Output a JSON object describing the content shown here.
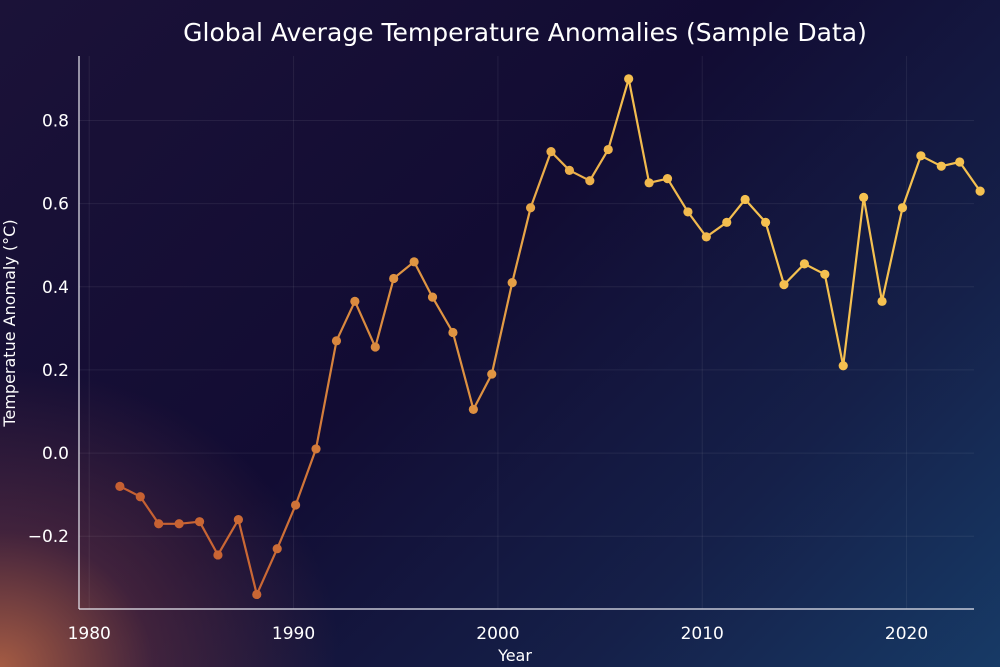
{
  "chart_data": {
    "type": "line",
    "title": "Global Average Temperature Anomalies (Sample Data)",
    "xlabel": "Year",
    "ylabel": "Temperatue Anomaly (°C)",
    "xlim": [
      1979.5,
      2023.3
    ],
    "ylim": [
      -0.375,
      0.955
    ],
    "xticks": [
      1980,
      1990,
      2000,
      2010,
      2020
    ],
    "yticks": [
      -0.2,
      0.0,
      0.2,
      0.4,
      0.6,
      0.8
    ],
    "ytick_labels": [
      "−0.2",
      "0.0",
      "0.2",
      "0.4",
      "0.6",
      "0.8"
    ],
    "grid": true,
    "color_start": "#c0532e",
    "color_end": "#f5c150",
    "series": [
      {
        "x": [
          1981.5,
          1982.5,
          1983.4,
          1984.4,
          1985.4,
          1986.3,
          1987.3,
          1988.2,
          1989.2,
          1990.1,
          1991.1,
          1992.1,
          1993.0,
          1994.0,
          1994.9,
          1995.9,
          1996.8,
          1997.8,
          1998.8,
          1999.7,
          2000.7,
          2001.6,
          2002.6,
          2003.5,
          2004.5,
          2005.4,
          2006.4,
          2007.4,
          2008.3,
          2009.3,
          2010.2,
          2011.2,
          2012.1,
          2013.1,
          2014.0,
          2015.0,
          2016.0,
          2016.9,
          2017.9,
          2018.8,
          2019.8,
          2020.7,
          2021.7,
          2022.6,
          2023.6
        ],
        "y": [
          -0.08,
          -0.105,
          -0.17,
          -0.17,
          -0.165,
          -0.245,
          -0.16,
          -0.34,
          -0.23,
          -0.125,
          0.01,
          0.27,
          0.365,
          0.255,
          0.42,
          0.46,
          0.375,
          0.29,
          0.105,
          0.19,
          0.41,
          0.59,
          0.725,
          0.68,
          0.655,
          0.73,
          0.9,
          0.65,
          0.66,
          0.58,
          0.52,
          0.555,
          0.61,
          0.555,
          0.405,
          0.455,
          0.43,
          0.21,
          0.615,
          0.365,
          0.59,
          0.715,
          0.69,
          0.7,
          0.63
        ]
      }
    ]
  }
}
